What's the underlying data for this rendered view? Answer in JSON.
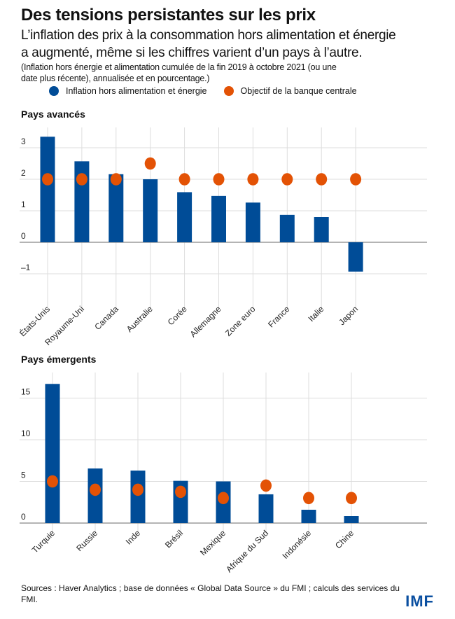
{
  "header": {
    "title": "Des tensions persistantes sur les prix",
    "subtitle_line1": "L’inflation des prix à la consommation hors alimentation et énergie",
    "subtitle_line2": "a augmenté, même si les chiffres varient d’un pays à l’autre.",
    "note_line1": "(Inflation hors énergie et alimentation cumulée de la fin 2019 à octobre 2021 (ou une",
    "note_line2": "date plus récente), annualisée et en pourcentage.)"
  },
  "legend": [
    {
      "label": "Inflation hors alimentation et énergie",
      "color": "#004c97"
    },
    {
      "label": "Objectif de la banque centrale",
      "color": "#e35205"
    }
  ],
  "chart_data": [
    {
      "type": "bar",
      "title": "Pays avancés",
      "categories": [
        "États-Unis",
        "Royaume-Uni",
        "Canada",
        "Australie",
        "Corée",
        "Allemagne",
        "Zone euro",
        "France",
        "Italie",
        "Japon"
      ],
      "series": [
        {
          "name": "Inflation hors alimentation et énergie",
          "type": "bar",
          "values": [
            3.35,
            2.57,
            2.16,
            2.0,
            1.59,
            1.47,
            1.26,
            0.87,
            0.8,
            -0.93
          ]
        },
        {
          "name": "Objectif de la banque centrale",
          "type": "scatter",
          "values": [
            2,
            2,
            2,
            2.5,
            2,
            2,
            2,
            2,
            2,
            2
          ]
        }
      ],
      "yticks": [
        -1,
        0,
        1,
        2,
        3
      ],
      "ylim": [
        -1.2,
        3.5
      ],
      "grid": true
    },
    {
      "type": "bar",
      "title": "Pays émergents",
      "categories": [
        "Turquie",
        "Russie",
        "Inde",
        "Brésil",
        "Mexique",
        "Afrique du Sud",
        "Indonésie",
        "Chine"
      ],
      "series": [
        {
          "name": "Inflation hors alimentation et énergie",
          "type": "bar",
          "values": [
            16.7,
            6.55,
            6.3,
            5.07,
            5.0,
            3.45,
            1.6,
            0.84
          ]
        },
        {
          "name": "Objectif de la banque centrale",
          "type": "scatter",
          "values": [
            5,
            4,
            4,
            3.75,
            3,
            4.5,
            3,
            3
          ]
        }
      ],
      "yticks": [
        0,
        5,
        10,
        15
      ],
      "ylim": [
        0,
        17.5
      ],
      "grid": true
    }
  ],
  "footer": {
    "sources": "Sources : Haver Analytics ; base de données « Global Data Source » du FMI ; calculs des services du FMI.",
    "logo": "IMF"
  }
}
